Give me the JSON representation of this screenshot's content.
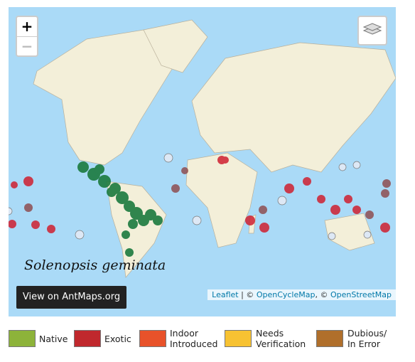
{
  "map": {
    "zoom_in": "+",
    "zoom_out": "−",
    "species": "Solenopsis geminata",
    "button": "View on AntMaps.org",
    "attribution": [
      "Leaflet",
      " | © ",
      "OpenCycleMap",
      ", © ",
      "OpenStreetMap"
    ]
  },
  "legend": [
    {
      "lines": [
        "Native"
      ],
      "color": "#8db33a"
    },
    {
      "lines": [
        "Exotic"
      ],
      "color": "#c0282d"
    },
    {
      "lines": [
        "Indoor",
        "Introduced"
      ],
      "color": "#e8522a"
    },
    {
      "lines": [
        "Needs",
        "Verification"
      ],
      "color": "#f7c232"
    },
    {
      "lines": [
        "Dubious/",
        "In Error"
      ],
      "color": "#b06f2b"
    }
  ]
}
